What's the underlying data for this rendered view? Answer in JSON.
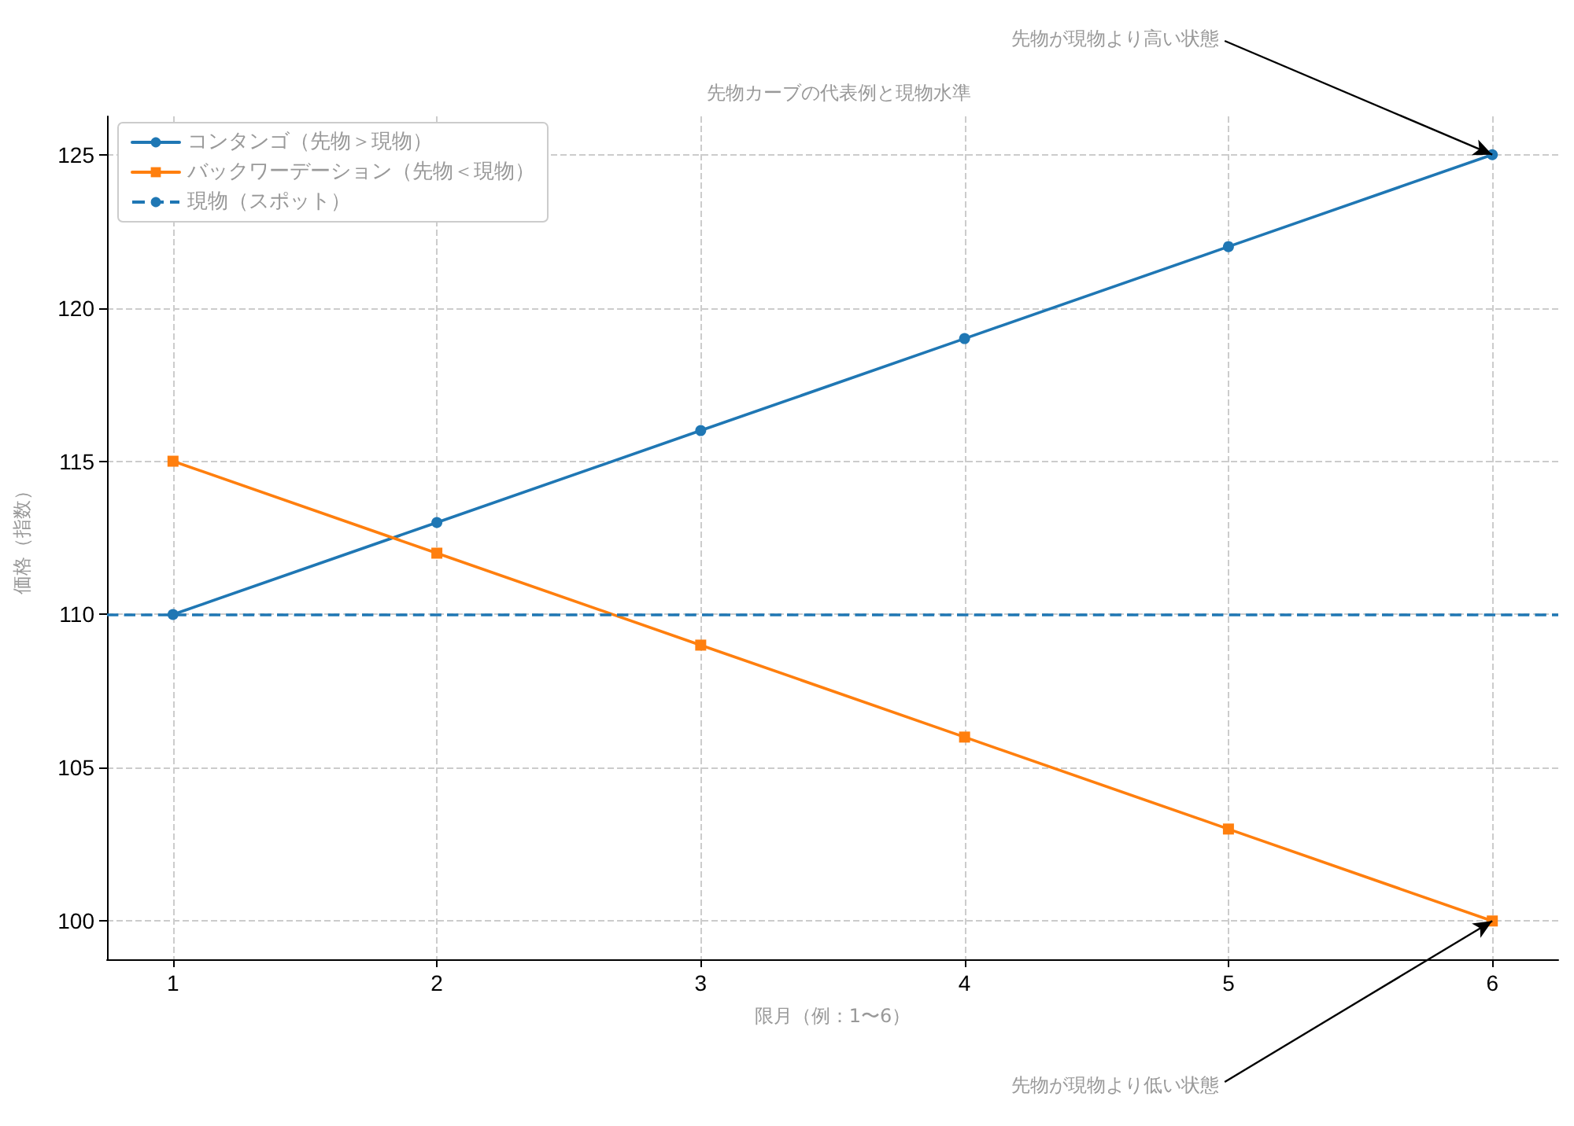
{
  "chart_data": {
    "type": "line",
    "title": "先物カーブの代表例と現物水準",
    "xlabel": "限月（例：1〜6）",
    "ylabel": "価格（指数）",
    "x": [
      1,
      2,
      3,
      4,
      5,
      6
    ],
    "xlim": [
      0.75,
      6.25
    ],
    "xticks": [
      1,
      2,
      3,
      4,
      5,
      6
    ],
    "ylim": [
      98.75,
      126.25
    ],
    "yticks": [
      100,
      105,
      110,
      115,
      120,
      125
    ],
    "series": [
      {
        "name": "コンタンゴ（先物＞現物）",
        "color": "#1f77b4",
        "marker": "circle",
        "values": [
          110,
          113,
          116,
          119,
          122,
          125
        ]
      },
      {
        "name": "バックワーデーション（先物＜現物）",
        "color": "#ff7f0e",
        "marker": "square",
        "values": [
          115,
          112,
          109,
          106,
          103,
          100
        ]
      }
    ],
    "ref_lines": [
      {
        "axis": "y",
        "value": 110,
        "label": "現物（スポット）",
        "color": "#1f77b4",
        "line_style": "dashed"
      }
    ],
    "annotations": [
      {
        "text": "先物が現物より高い状態",
        "x": 6,
        "y": 125
      },
      {
        "text": "先物が現物より低い状態",
        "x": 6,
        "y": 100
      }
    ],
    "grid": true,
    "legend": "top left",
    "line_style": "solid"
  }
}
